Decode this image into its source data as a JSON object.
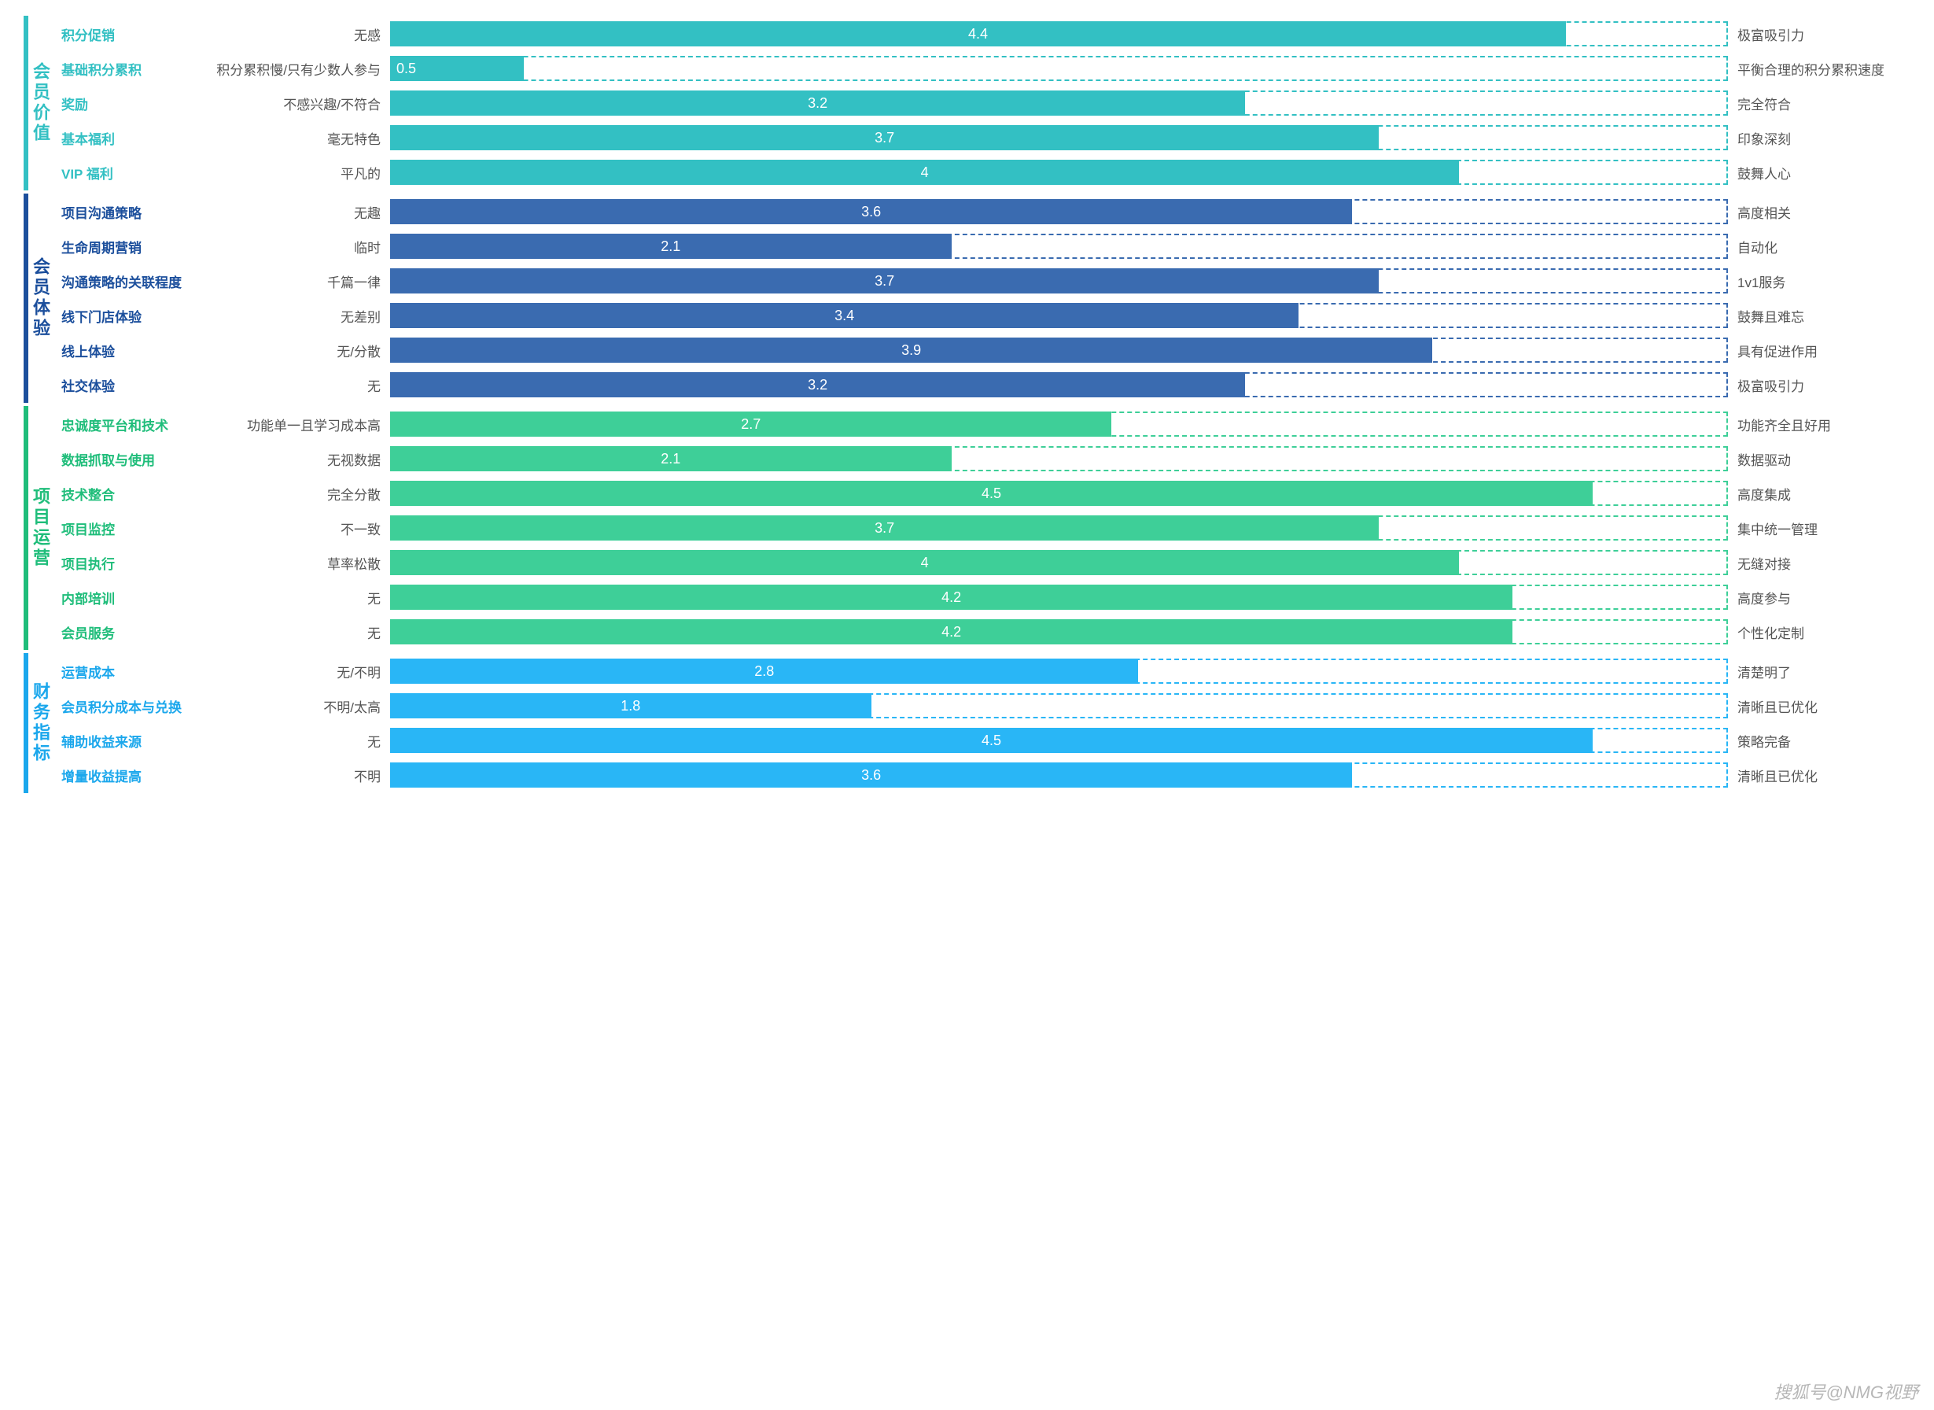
{
  "max_value": 5,
  "sections": [
    {
      "title": "会员价值",
      "color": "#33c0c3",
      "bar_color": "#33c0c3",
      "dash_color": "#33c0c3",
      "rows": [
        {
          "metric": "积分促销",
          "left": "无感",
          "value": 4.4,
          "right": "极富吸引力"
        },
        {
          "metric": "基础积分累积",
          "left": "积分累积慢/只有少数人参与",
          "value": 0.5,
          "right": "平衡合理的积分累积速度"
        },
        {
          "metric": "奖励",
          "left": "不感兴趣/不符合",
          "value": 3.2,
          "right": "完全符合"
        },
        {
          "metric": "基本福利",
          "left": "毫无特色",
          "value": 3.7,
          "right": "印象深刻"
        },
        {
          "metric": "VIP 福利",
          "left": "平凡的",
          "value": 4,
          "right": "鼓舞人心"
        }
      ]
    },
    {
      "title": "会员体验",
      "color": "#1c4f9c",
      "bar_color": "#3a6bb0",
      "dash_color": "#3a6bb0",
      "rows": [
        {
          "metric": "项目沟通策略",
          "left": "无趣",
          "value": 3.6,
          "right": "高度相关"
        },
        {
          "metric": "生命周期营销",
          "left": "临时",
          "value": 2.1,
          "right": "自动化"
        },
        {
          "metric": "沟通策略的关联程度",
          "left": "千篇一律",
          "value": 3.7,
          "right": "1v1服务"
        },
        {
          "metric": "线下门店体验",
          "left": "无差别",
          "value": 3.4,
          "right": "鼓舞且难忘"
        },
        {
          "metric": "线上体验",
          "left": "无/分散",
          "value": 3.9,
          "right": "具有促进作用"
        },
        {
          "metric": "社交体验",
          "left": "无",
          "value": 3.2,
          "right": "极富吸引力"
        }
      ]
    },
    {
      "title": "项目运营",
      "color": "#1fbd7a",
      "bar_color": "#3ecf98",
      "dash_color": "#3ecf98",
      "rows": [
        {
          "metric": "忠诚度平台和技术",
          "left": "功能单一且学习成本高",
          "value": 2.7,
          "right": "功能齐全且好用"
        },
        {
          "metric": "数据抓取与使用",
          "left": "无视数据",
          "value": 2.1,
          "right": "数据驱动"
        },
        {
          "metric": "技术整合",
          "left": "完全分散",
          "value": 4.5,
          "right": "高度集成"
        },
        {
          "metric": "项目监控",
          "left": "不一致",
          "value": 3.7,
          "right": "集中统一管理"
        },
        {
          "metric": "项目执行",
          "left": "草率松散",
          "value": 4,
          "right": "无缝对接"
        },
        {
          "metric": "内部培训",
          "left": "无",
          "value": 4.2,
          "right": "高度参与"
        },
        {
          "metric": "会员服务",
          "left": "无",
          "value": 4.2,
          "right": "个性化定制"
        }
      ]
    },
    {
      "title": "财务指标",
      "color": "#1ba7ec",
      "bar_color": "#29b6f6",
      "dash_color": "#29b6f6",
      "rows": [
        {
          "metric": "运营成本",
          "left": "无/不明",
          "value": 2.8,
          "right": "清楚明了"
        },
        {
          "metric": "会员积分成本与兑换",
          "left": "不明/太高",
          "value": 1.8,
          "right": "清晰且已优化"
        },
        {
          "metric": "辅助收益来源",
          "left": "无",
          "value": 4.5,
          "right": "策略完备"
        },
        {
          "metric": "增量收益提高",
          "left": "不明",
          "value": 3.6,
          "right": "清晰且已优化"
        }
      ]
    }
  ],
  "watermark": "搜狐号@NMG视野"
}
